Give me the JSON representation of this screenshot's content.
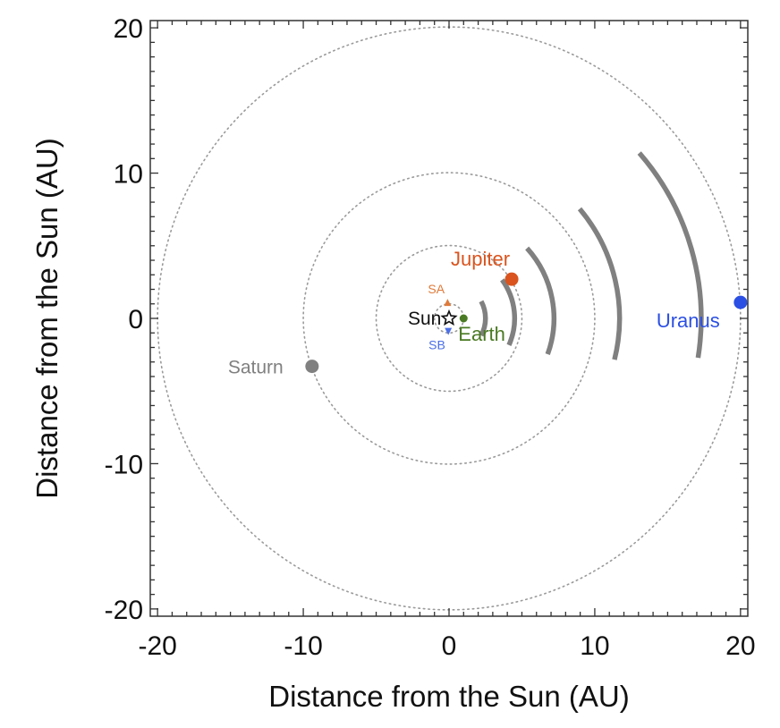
{
  "chart_data": {
    "type": "scatter",
    "xlabel": "Distance from the Sun (AU)",
    "ylabel": "Distance from the Sun (AU)",
    "xlim": [
      -20.5,
      20.5
    ],
    "ylim": [
      -20.5,
      20.5
    ],
    "xticks": [
      -20,
      -10,
      0,
      10,
      20
    ],
    "yticks": [
      -20,
      -10,
      0,
      10,
      20
    ],
    "xtick_labels": [
      "-20",
      "-10",
      "0",
      "10",
      "20"
    ],
    "ytick_labels": [
      "-20",
      "-10",
      "0",
      "10",
      "20"
    ],
    "grid": false,
    "orbits_au": [
      1,
      5,
      10,
      20
    ],
    "bodies": [
      {
        "name": "Sun",
        "x": 0,
        "y": 0,
        "color": "#111111",
        "marker": "star"
      },
      {
        "name": "Earth",
        "x": 1.0,
        "y": 0.0,
        "color": "#4a7a23",
        "marker": "dot"
      },
      {
        "name": "Jupiter",
        "x": 4.3,
        "y": 2.7,
        "color": "#d9541e",
        "marker": "dot"
      },
      {
        "name": "Saturn",
        "x": -9.4,
        "y": -3.3,
        "color": "#808080",
        "marker": "dot"
      },
      {
        "name": "Uranus",
        "x": 20.0,
        "y": 1.1,
        "color": "#2b4fe3",
        "marker": "dot"
      },
      {
        "name": "SA",
        "x": -0.1,
        "y": 1.1,
        "color": "#e07a3a",
        "marker": "triangle"
      },
      {
        "name": "SB",
        "x": -0.05,
        "y": -0.9,
        "color": "#4b6fe6",
        "marker": "triangle"
      }
    ],
    "arcs": [
      {
        "radius": 2.5,
        "theta_from": -28,
        "theta_to": 28
      },
      {
        "radius": 4.5,
        "theta_from": -24,
        "theta_to": 36
      },
      {
        "radius": 7.2,
        "theta_from": -20,
        "theta_to": 42
      },
      {
        "radius": 11.7,
        "theta_from": -14,
        "theta_to": 40
      },
      {
        "radius": 17.3,
        "theta_from": -9,
        "theta_to": 41
      }
    ],
    "arc_color": "#808080"
  }
}
